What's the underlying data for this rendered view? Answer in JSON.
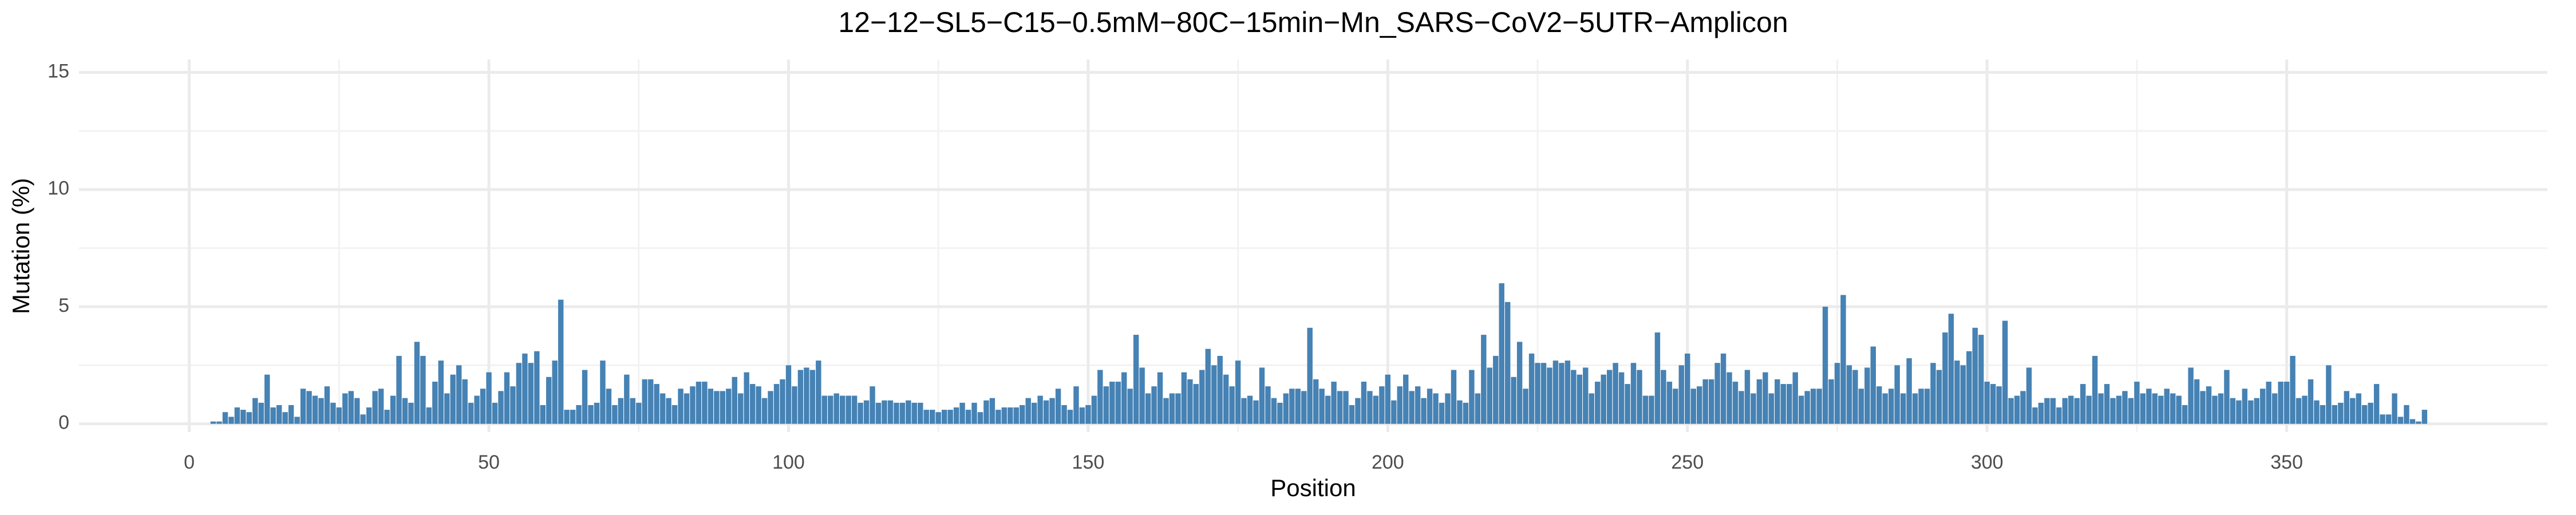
{
  "chart_data": {
    "type": "bar",
    "title": "12−12−SL5−C15−0.5mM−80C−15min−Mn_SARS−CoV2−5UTR−Amplicon",
    "xlabel": "Position",
    "ylabel": "Mutation (%)",
    "color": "#4682b4",
    "grid": true,
    "xlim": [
      -18.4,
      393.5
    ],
    "xticks": [
      0,
      50,
      100,
      150,
      200,
      250,
      300,
      350
    ],
    "ylim": [
      -0.35,
      15.55
    ],
    "yticks": [
      0,
      5,
      10,
      15
    ],
    "x": [
      4,
      5,
      6,
      7,
      8,
      9,
      10,
      11,
      12,
      13,
      14,
      15,
      16,
      17,
      18,
      19,
      20,
      21,
      22,
      23,
      24,
      25,
      26,
      27,
      28,
      29,
      30,
      31,
      32,
      33,
      34,
      35,
      36,
      37,
      38,
      39,
      40,
      41,
      42,
      43,
      44,
      45,
      46,
      47,
      48,
      49,
      50,
      51,
      52,
      53,
      54,
      55,
      56,
      57,
      58,
      59,
      60,
      61,
      62,
      63,
      64,
      65,
      66,
      67,
      68,
      69,
      70,
      71,
      72,
      73,
      74,
      75,
      76,
      77,
      78,
      79,
      80,
      81,
      82,
      83,
      84,
      85,
      86,
      87,
      88,
      89,
      90,
      91,
      92,
      93,
      94,
      95,
      96,
      97,
      98,
      99,
      100,
      101,
      102,
      103,
      104,
      105,
      106,
      107,
      108,
      109,
      110,
      111,
      112,
      113,
      114,
      115,
      116,
      117,
      118,
      119,
      120,
      121,
      122,
      123,
      124,
      125,
      126,
      127,
      128,
      129,
      130,
      131,
      132,
      133,
      134,
      135,
      136,
      137,
      138,
      139,
      140,
      141,
      142,
      143,
      144,
      145,
      146,
      147,
      148,
      149,
      150,
      151,
      152,
      153,
      154,
      155,
      156,
      157,
      158,
      159,
      160,
      161,
      162,
      163,
      164,
      165,
      166,
      167,
      168,
      169,
      170,
      171,
      172,
      173,
      174,
      175,
      176,
      177,
      178,
      179,
      180,
      181,
      182,
      183,
      184,
      185,
      186,
      187,
      188,
      189,
      190,
      191,
      192,
      193,
      194,
      195,
      196,
      197,
      198,
      199,
      200,
      201,
      202,
      203,
      204,
      205,
      206,
      207,
      208,
      209,
      210,
      211,
      212,
      213,
      214,
      215,
      216,
      217,
      218,
      219,
      220,
      221,
      222,
      223,
      224,
      225,
      226,
      227,
      228,
      229,
      230,
      231,
      232,
      233,
      234,
      235,
      236,
      237,
      238,
      239,
      240,
      241,
      242,
      243,
      244,
      245,
      246,
      247,
      248,
      249,
      250,
      251,
      252,
      253,
      254,
      255,
      256,
      257,
      258,
      259,
      260,
      261,
      262,
      263,
      264,
      265,
      266,
      267,
      268,
      269,
      270,
      271,
      272,
      273,
      274,
      275,
      276,
      277,
      278,
      279,
      280,
      281,
      282,
      283,
      284,
      285,
      286,
      287,
      288,
      289,
      290,
      291,
      292,
      293,
      294,
      295,
      296,
      297,
      298,
      299,
      300,
      301,
      302,
      303,
      304,
      305,
      306,
      307,
      308,
      309,
      310,
      311,
      312,
      313,
      314,
      315,
      316,
      317,
      318,
      319,
      320,
      321,
      322,
      323,
      324,
      325,
      326,
      327,
      328,
      329,
      330,
      331,
      332,
      333,
      334,
      335,
      336,
      337,
      338,
      339,
      340,
      341,
      342,
      343,
      344,
      345,
      346,
      347,
      348,
      349,
      350,
      351,
      352,
      353,
      354,
      355,
      356,
      357,
      358,
      359,
      360,
      361,
      362,
      363,
      364,
      365,
      366,
      367,
      368,
      369,
      370,
      371,
      372,
      373
    ],
    "values": [
      0.1,
      0.1,
      0.5,
      0.3,
      0.7,
      0.6,
      0.5,
      1.1,
      0.9,
      2.1,
      0.7,
      0.8,
      0.5,
      0.8,
      0.3,
      1.5,
      1.4,
      1.2,
      1.1,
      1.6,
      0.9,
      0.7,
      1.3,
      1.4,
      1.1,
      0.4,
      0.7,
      1.4,
      1.5,
      0.6,
      1.2,
      2.9,
      1.1,
      0.9,
      3.5,
      2.9,
      0.7,
      1.8,
      2.7,
      1.3,
      2.1,
      2.5,
      1.9,
      0.9,
      1.2,
      1.5,
      2.2,
      0.9,
      1.4,
      2.2,
      1.6,
      2.6,
      3.0,
      2.6,
      3.1,
      0.8,
      2.0,
      2.7,
      5.3,
      0.6,
      0.6,
      0.8,
      2.3,
      0.8,
      0.9,
      2.7,
      1.5,
      0.8,
      1.1,
      2.1,
      1.1,
      0.9,
      1.9,
      1.9,
      1.7,
      1.3,
      1.1,
      0.8,
      1.5,
      1.3,
      1.6,
      1.8,
      1.8,
      1.5,
      1.4,
      1.4,
      1.5,
      2.0,
      1.3,
      2.2,
      1.7,
      1.6,
      1.1,
      1.4,
      1.7,
      1.9,
      2.5,
      1.6,
      2.3,
      2.4,
      2.3,
      2.7,
      1.2,
      1.2,
      1.3,
      1.2,
      1.2,
      1.2,
      0.9,
      1.0,
      1.6,
      0.9,
      1.0,
      1.0,
      0.9,
      0.9,
      1.0,
      0.9,
      0.9,
      0.6,
      0.6,
      0.5,
      0.6,
      0.6,
      0.7,
      0.9,
      0.6,
      0.9,
      0.5,
      1.0,
      1.1,
      0.6,
      0.7,
      0.7,
      0.7,
      0.8,
      1.1,
      0.9,
      1.2,
      1.0,
      1.1,
      1.5,
      0.8,
      0.6,
      1.6,
      0.7,
      0.8,
      1.2,
      2.3,
      1.6,
      1.8,
      1.8,
      2.2,
      1.5,
      3.8,
      2.4,
      1.3,
      1.6,
      2.2,
      1.1,
      1.3,
      1.3,
      2.2,
      1.9,
      1.7,
      2.3,
      3.2,
      2.5,
      2.9,
      2.1,
      1.6,
      2.7,
      1.1,
      1.2,
      1.0,
      2.4,
      1.6,
      1.1,
      0.9,
      1.3,
      1.5,
      1.5,
      1.4,
      4.1,
      1.9,
      1.5,
      1.2,
      1.8,
      1.4,
      1.4,
      0.8,
      1.1,
      1.8,
      1.4,
      1.2,
      1.6,
      2.1,
      1.0,
      1.6,
      2.1,
      1.4,
      1.6,
      1.1,
      1.5,
      1.3,
      0.9,
      1.3,
      2.3,
      1.0,
      0.9,
      2.3,
      1.3,
      3.8,
      2.4,
      2.9,
      6.0,
      5.2,
      2.0,
      3.5,
      1.5,
      3.0,
      2.6,
      2.6,
      2.4,
      2.7,
      2.6,
      2.7,
      2.3,
      2.1,
      2.4,
      1.3,
      1.8,
      2.1,
      2.3,
      2.6,
      2.2,
      1.7,
      2.6,
      2.3,
      1.2,
      1.2,
      3.9,
      2.3,
      1.8,
      1.5,
      2.5,
      3.0,
      1.5,
      1.6,
      1.9,
      1.9,
      2.6,
      3.0,
      2.2,
      1.8,
      1.4,
      2.3,
      1.3,
      1.9,
      2.2,
      1.3,
      1.9,
      1.7,
      1.7,
      2.2,
      1.2,
      1.4,
      1.5,
      1.5,
      5.0,
      1.9,
      2.6,
      5.5,
      2.5,
      2.3,
      1.5,
      2.4,
      3.3,
      1.6,
      1.3,
      1.5,
      2.5,
      1.3,
      2.8,
      1.3,
      1.5,
      1.5,
      2.6,
      2.3,
      3.9,
      4.7,
      2.7,
      2.5,
      3.1,
      4.1,
      3.8,
      1.8,
      1.7,
      1.6,
      4.4,
      1.1,
      1.2,
      1.4,
      2.4,
      0.7,
      0.9,
      1.1,
      1.1,
      0.7,
      1.1,
      1.2,
      1.1,
      1.7,
      1.2,
      2.9,
      1.3,
      1.7,
      1.1,
      1.2,
      1.4,
      1.1,
      1.8,
      1.3,
      1.5,
      1.3,
      1.2,
      1.5,
      1.3,
      1.2,
      0.8,
      2.4,
      1.9,
      1.4,
      1.6,
      1.2,
      1.3,
      2.3,
      1.1,
      1.0,
      1.5,
      1.0,
      1.1,
      1.5,
      1.8,
      1.3,
      1.8,
      1.8,
      2.9,
      1.1,
      1.2,
      1.9,
      1.0,
      0.8,
      2.5,
      0.8,
      0.9,
      1.4,
      1.1,
      1.3,
      0.8,
      0.9,
      1.7,
      0.4,
      0.4,
      1.3,
      0.3,
      0.8,
      0.2,
      0.1,
      0.6
    ]
  }
}
